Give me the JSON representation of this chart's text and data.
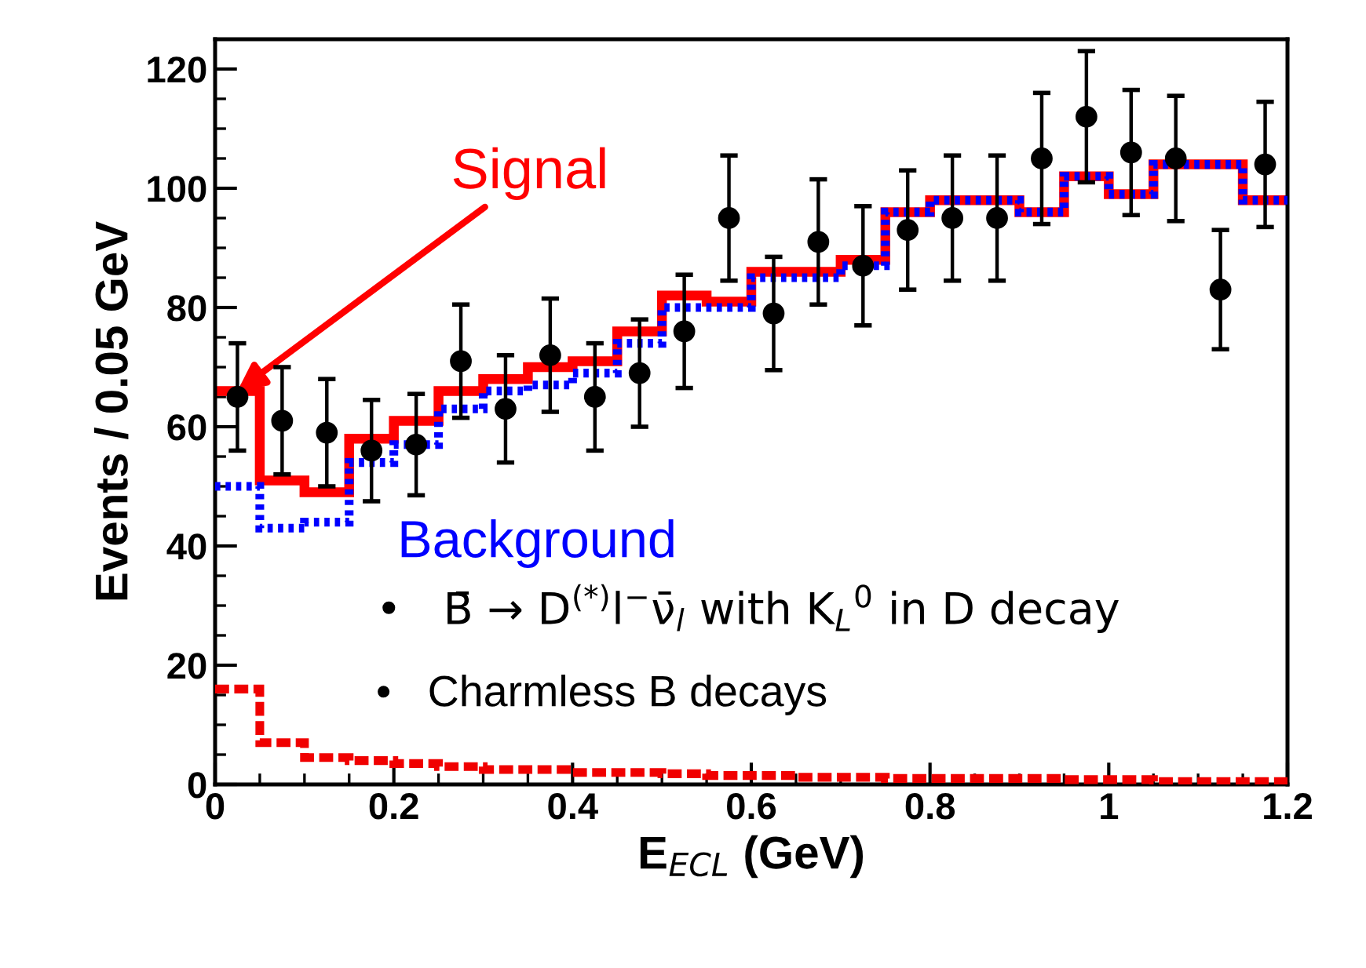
{
  "chart_data": {
    "type": "histogram",
    "xlabel": "E$_{ECL}$ (GeV)",
    "ylabel": "Events / 0.05 GeV",
    "bins": [
      0,
      0.05,
      0.1,
      0.15,
      0.2,
      0.25,
      0.3,
      0.35,
      0.4,
      0.45,
      0.5,
      0.55,
      0.6,
      0.65,
      0.7,
      0.75,
      0.8,
      0.85,
      0.9,
      0.95,
      1.0,
      1.05,
      1.1,
      1.15,
      1.2
    ],
    "series": [
      {
        "color": "#0000ff",
        "line_style": "dotted",
        "values": [
          50,
          43,
          44,
          54,
          57,
          63,
          66,
          67,
          69,
          74,
          80,
          80,
          85,
          85,
          87,
          96,
          98,
          98,
          96,
          102,
          99,
          104,
          104,
          98
        ]
      },
      {
        "color": "#ff0000",
        "line_style": "solid",
        "values": [
          66,
          51,
          49,
          58,
          61,
          66,
          68,
          70,
          71,
          76,
          82,
          81,
          86,
          86,
          88,
          96,
          98,
          98,
          96,
          102,
          99,
          104,
          104,
          98
        ]
      },
      {
        "color": "#f00000",
        "line_style": "dashed",
        "values": [
          16,
          7,
          4.5,
          4,
          3.5,
          3,
          2.5,
          2.5,
          2,
          2,
          1.8,
          1.5,
          1.5,
          1.2,
          1.2,
          1,
          1,
          1,
          1,
          0.8,
          0.8,
          0.5,
          0.5,
          0.5
        ]
      },
      {
        "type": "scatter",
        "color": "#000000",
        "marker": "circle",
        "x": [
          0.025,
          0.075,
          0.125,
          0.175,
          0.225,
          0.275,
          0.325,
          0.375,
          0.425,
          0.475,
          0.525,
          0.575,
          0.625,
          0.675,
          0.725,
          0.775,
          0.825,
          0.875,
          0.925,
          0.975,
          1.025,
          1.075,
          1.125,
          1.175
        ],
        "values": [
          65,
          61,
          59,
          56,
          57,
          71,
          63,
          72,
          65,
          69,
          76,
          95,
          79,
          91,
          87,
          93,
          95,
          95,
          105,
          112,
          106,
          105,
          83,
          104
        ],
        "errors": [
          9,
          9,
          9,
          8.5,
          8.5,
          9.5,
          9,
          9.5,
          9,
          9,
          9.5,
          10.5,
          9.5,
          10.5,
          10,
          10,
          10.5,
          10.5,
          11,
          11,
          10.5,
          10.5,
          10,
          10.5
        ]
      }
    ],
    "xlim": [
      0,
      1.2
    ],
    "xticks": [
      0,
      0.2,
      0.4,
      0.6,
      0.8,
      1,
      1.2
    ],
    "ylim": [
      0,
      125
    ],
    "yticks": [
      0,
      20,
      40,
      60,
      80,
      100,
      120
    ],
    "grid": false,
    "legend": false,
    "annotations": [
      {
        "text": "Signal",
        "x": 0.025,
        "y": 66
      },
      "Background",
      "•   B̄ → D$^{(*)}$l$^{−}$ν̄$_{l}$ with K$_{L}$$^{0}$ in D decay",
      "•   Charmless B decays"
    ]
  }
}
